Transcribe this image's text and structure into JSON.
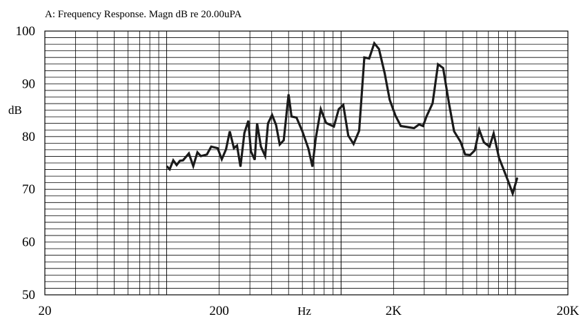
{
  "chart_data": {
    "type": "line",
    "title": "A: Frequency Response. Magn dB re 20.00uPA",
    "xlabel": "Hz",
    "ylabel": "dB",
    "xscale": "log",
    "xlim": [
      20,
      20000
    ],
    "ylim": [
      50,
      100
    ],
    "grid": true,
    "x_tick_labels": [
      {
        "value": 20,
        "label": "20"
      },
      {
        "value": 200,
        "label": "200"
      },
      {
        "value": 2000,
        "label": "2K"
      },
      {
        "value": 20000,
        "label": "20K"
      }
    ],
    "y_tick_labels": [
      {
        "value": 50,
        "label": "50"
      },
      {
        "value": 60,
        "label": "60"
      },
      {
        "value": 70,
        "label": "70"
      },
      {
        "value": 80,
        "label": "80"
      },
      {
        "value": 90,
        "label": "90"
      },
      {
        "value": 100,
        "label": "100"
      }
    ],
    "series": [
      {
        "color": "#1a1a1a",
        "points": [
          [
            100,
            74.4
          ],
          [
            104,
            73.8
          ],
          [
            109,
            75.5
          ],
          [
            114,
            74.6
          ],
          [
            119,
            75.4
          ],
          [
            124,
            75.5
          ],
          [
            134,
            76.8
          ],
          [
            142,
            74.4
          ],
          [
            150,
            77.0
          ],
          [
            157,
            76.3
          ],
          [
            170,
            76.6
          ],
          [
            180,
            78.1
          ],
          [
            196,
            77.8
          ],
          [
            207,
            75.7
          ],
          [
            219,
            77.6
          ],
          [
            230,
            81.0
          ],
          [
            243,
            77.8
          ],
          [
            253,
            78.3
          ],
          [
            265,
            74.3
          ],
          [
            279,
            80.7
          ],
          [
            294,
            83.0
          ],
          [
            304,
            77.2
          ],
          [
            320,
            75.6
          ],
          [
            330,
            82.5
          ],
          [
            347,
            78.1
          ],
          [
            367,
            76.3
          ],
          [
            381,
            82.5
          ],
          [
            402,
            84.1
          ],
          [
            424,
            82.2
          ],
          [
            445,
            78.5
          ],
          [
            469,
            79.3
          ],
          [
            500,
            88.0
          ],
          [
            520,
            83.8
          ],
          [
            555,
            83.6
          ],
          [
            600,
            81.0
          ],
          [
            650,
            77.7
          ],
          [
            685,
            74.3
          ],
          [
            715,
            79.6
          ],
          [
            765,
            85.2
          ],
          [
            820,
            82.6
          ],
          [
            870,
            82.2
          ],
          [
            910,
            81.9
          ],
          [
            970,
            85.2
          ],
          [
            1030,
            86.0
          ],
          [
            1100,
            80.2
          ],
          [
            1180,
            78.6
          ],
          [
            1270,
            81.1
          ],
          [
            1360,
            95.0
          ],
          [
            1450,
            94.8
          ],
          [
            1550,
            97.7
          ],
          [
            1650,
            96.6
          ],
          [
            1780,
            92.0
          ],
          [
            1900,
            87.0
          ],
          [
            2050,
            84.0
          ],
          [
            2200,
            82.0
          ],
          [
            2400,
            81.8
          ],
          [
            2620,
            81.6
          ],
          [
            2800,
            82.3
          ],
          [
            2950,
            82.0
          ],
          [
            3100,
            83.9
          ],
          [
            3350,
            86.3
          ],
          [
            3600,
            93.7
          ],
          [
            3850,
            93.0
          ],
          [
            4150,
            86.5
          ],
          [
            4450,
            81.0
          ],
          [
            4850,
            79.0
          ],
          [
            5150,
            76.6
          ],
          [
            5500,
            76.5
          ],
          [
            5850,
            77.4
          ],
          [
            6200,
            81.3
          ],
          [
            6600,
            78.9
          ],
          [
            7100,
            78.1
          ],
          [
            7500,
            80.6
          ],
          [
            8050,
            76.0
          ],
          [
            8500,
            74.0
          ],
          [
            9050,
            71.7
          ],
          [
            9650,
            69.2
          ],
          [
            10250,
            72.2
          ]
        ]
      }
    ]
  }
}
